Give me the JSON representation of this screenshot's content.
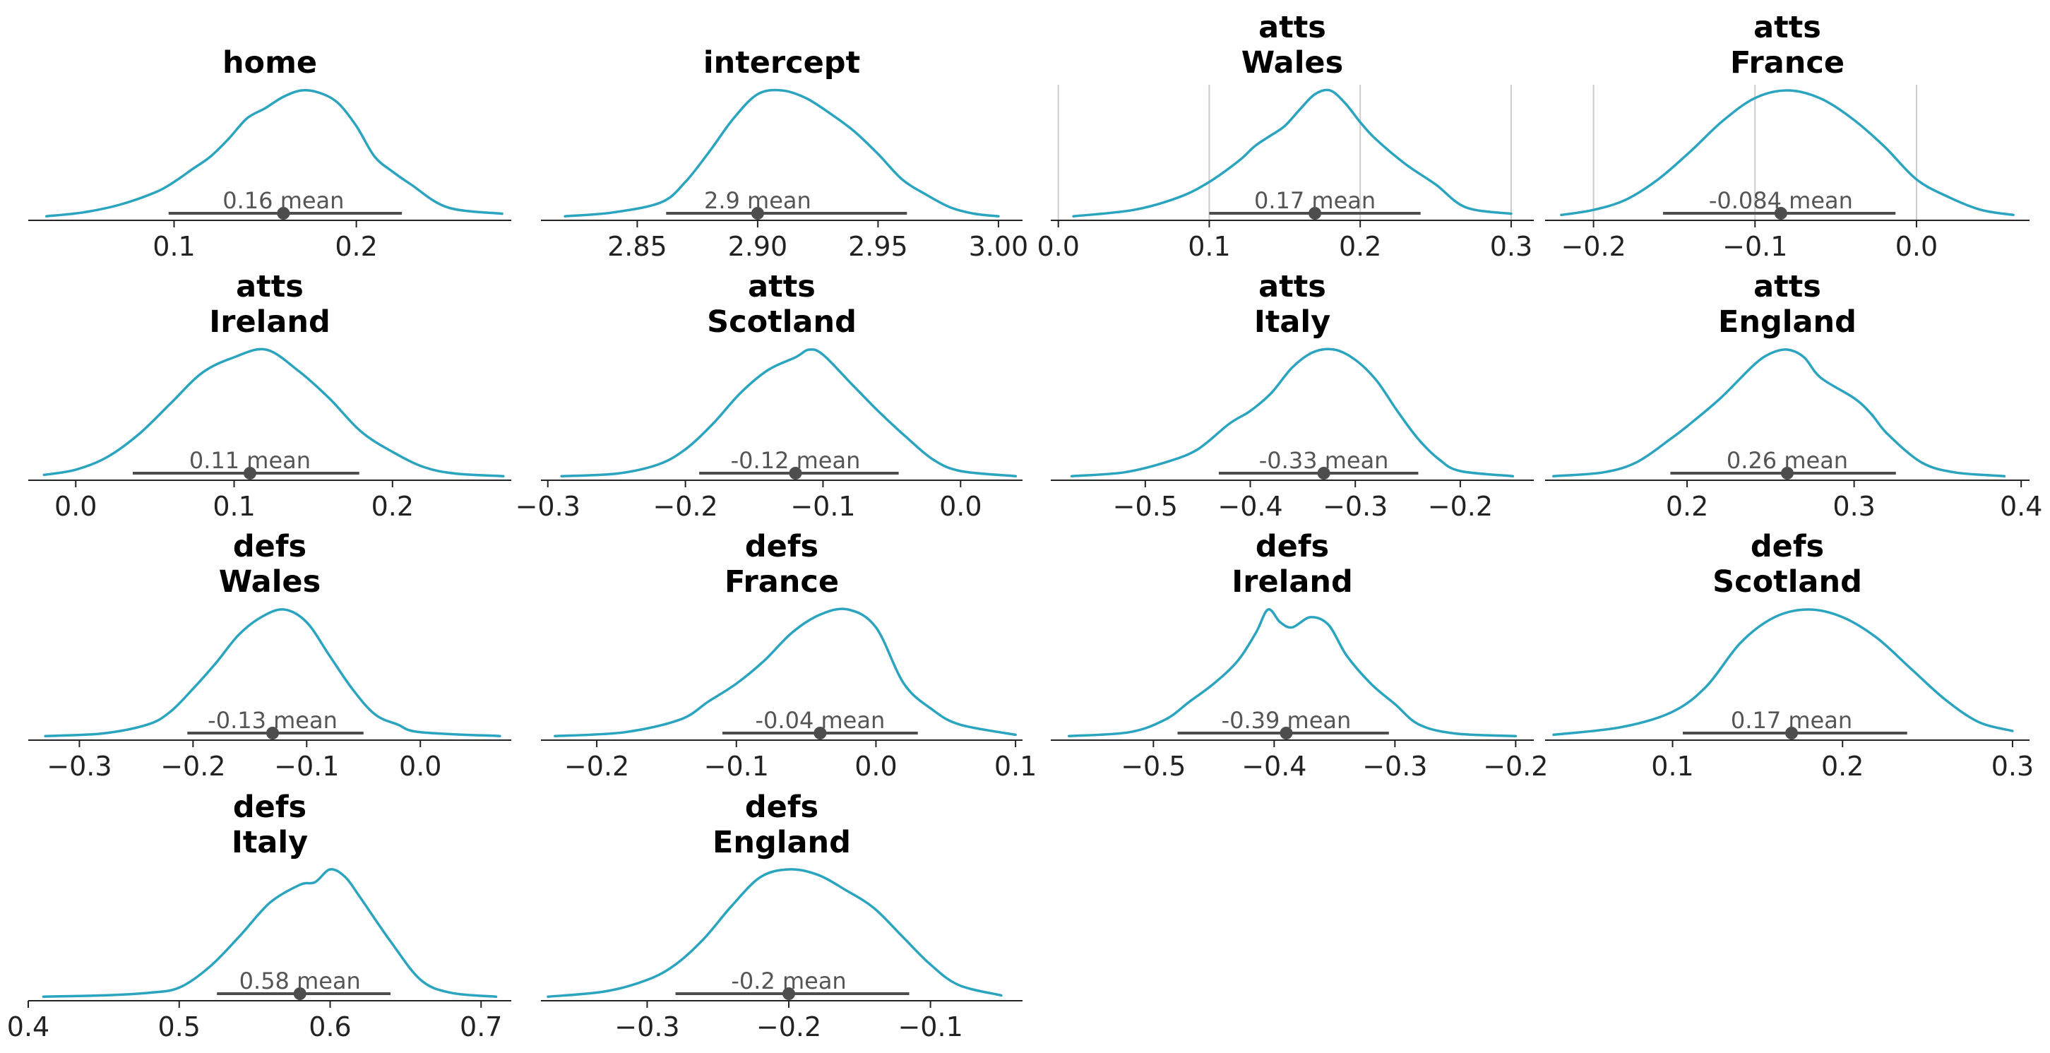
{
  "colors": {
    "curve": "#2aa4bf",
    "interval": "#4d4d4d",
    "point_label": "#555555",
    "axis": "#222222",
    "grid": "#cccccc"
  },
  "chart_data": [
    {
      "type": "line",
      "title": [
        "home"
      ],
      "xlim": [
        0.02,
        0.285
      ],
      "ticks": [
        0.1,
        0.2
      ],
      "tick_labels": [
        "0.1",
        "0.2"
      ],
      "grid": false,
      "mean": 0.16,
      "mean_label": "0.16 mean",
      "interval": [
        0.097,
        0.225
      ],
      "density": {
        "x": [
          0.03,
          0.05,
          0.07,
          0.09,
          0.1,
          0.11,
          0.12,
          0.13,
          0.14,
          0.15,
          0.16,
          0.17,
          0.18,
          0.19,
          0.2,
          0.21,
          0.22,
          0.23,
          0.25,
          0.28
        ],
        "y": [
          0.01,
          0.04,
          0.1,
          0.2,
          0.28,
          0.38,
          0.48,
          0.62,
          0.78,
          0.86,
          0.95,
          1.0,
          0.98,
          0.9,
          0.72,
          0.48,
          0.36,
          0.26,
          0.08,
          0.03
        ]
      }
    },
    {
      "type": "line",
      "title": [
        "intercept"
      ],
      "xlim": [
        2.81,
        3.01
      ],
      "ticks": [
        2.85,
        2.9,
        2.95,
        3.0
      ],
      "tick_labels": [
        "2.85",
        "2.90",
        "2.95",
        "3.00"
      ],
      "grid": false,
      "mean": 2.9,
      "mean_label": "2.9 mean",
      "interval": [
        2.862,
        2.962
      ],
      "density": {
        "x": [
          2.82,
          2.84,
          2.86,
          2.87,
          2.88,
          2.89,
          2.9,
          2.91,
          2.92,
          2.93,
          2.94,
          2.95,
          2.96,
          2.97,
          2.98,
          2.99,
          3.0
        ],
        "y": [
          0.01,
          0.04,
          0.12,
          0.28,
          0.52,
          0.78,
          0.97,
          1.0,
          0.94,
          0.82,
          0.68,
          0.5,
          0.3,
          0.18,
          0.08,
          0.03,
          0.01
        ]
      }
    },
    {
      "type": "line",
      "title": [
        "atts",
        "Wales"
      ],
      "xlim": [
        -0.005,
        0.315
      ],
      "ticks": [
        0.0,
        0.1,
        0.2,
        0.3
      ],
      "tick_labels": [
        "0.0",
        "0.1",
        "0.2",
        "0.3"
      ],
      "grid": true,
      "mean": 0.17,
      "mean_label": "0.17 mean",
      "interval": [
        0.1,
        0.24
      ],
      "density": {
        "x": [
          0.01,
          0.05,
          0.08,
          0.1,
          0.12,
          0.13,
          0.14,
          0.15,
          0.16,
          0.17,
          0.18,
          0.19,
          0.2,
          0.21,
          0.23,
          0.25,
          0.27,
          0.3
        ],
        "y": [
          0.01,
          0.06,
          0.16,
          0.28,
          0.45,
          0.56,
          0.64,
          0.72,
          0.85,
          0.97,
          1.0,
          0.9,
          0.75,
          0.62,
          0.42,
          0.26,
          0.08,
          0.03
        ]
      }
    },
    {
      "type": "line",
      "title": [
        "atts",
        "France"
      ],
      "xlim": [
        -0.23,
        0.07
      ],
      "ticks": [
        -0.2,
        -0.1,
        0.0
      ],
      "tick_labels": [
        "−0.2",
        "−0.1",
        "0.0"
      ],
      "grid": true,
      "mean": -0.084,
      "mean_label": "-0.084 mean",
      "interval": [
        -0.157,
        -0.013
      ],
      "density": {
        "x": [
          -0.22,
          -0.2,
          -0.18,
          -0.16,
          -0.14,
          -0.12,
          -0.1,
          -0.08,
          -0.06,
          -0.04,
          -0.02,
          0.0,
          0.02,
          0.04,
          0.06
        ],
        "y": [
          0.02,
          0.06,
          0.14,
          0.3,
          0.52,
          0.76,
          0.94,
          1.0,
          0.94,
          0.78,
          0.56,
          0.3,
          0.16,
          0.06,
          0.02
        ]
      }
    },
    {
      "type": "line",
      "title": [
        "atts",
        "Ireland"
      ],
      "xlim": [
        -0.03,
        0.275
      ],
      "ticks": [
        0.0,
        0.1,
        0.2
      ],
      "tick_labels": [
        "0.0",
        "0.1",
        "0.2"
      ],
      "grid": false,
      "mean": 0.11,
      "mean_label": "0.11 mean",
      "interval": [
        0.036,
        0.179
      ],
      "density": {
        "x": [
          -0.02,
          0.0,
          0.02,
          0.04,
          0.06,
          0.08,
          0.1,
          0.12,
          0.14,
          0.16,
          0.18,
          0.2,
          0.22,
          0.24,
          0.27
        ],
        "y": [
          0.02,
          0.06,
          0.16,
          0.34,
          0.58,
          0.82,
          0.94,
          1.0,
          0.84,
          0.62,
          0.36,
          0.2,
          0.08,
          0.03,
          0.01
        ]
      }
    },
    {
      "type": "line",
      "title": [
        "atts",
        "Scotland"
      ],
      "xlim": [
        -0.305,
        0.045
      ],
      "ticks": [
        -0.3,
        -0.2,
        -0.1,
        0.0
      ],
      "tick_labels": [
        "−0.3",
        "−0.2",
        "−0.1",
        "0.0"
      ],
      "grid": false,
      "mean": -0.12,
      "mean_label": "-0.12 mean",
      "interval": [
        -0.19,
        -0.045
      ],
      "density": {
        "x": [
          -0.29,
          -0.25,
          -0.22,
          -0.2,
          -0.18,
          -0.16,
          -0.14,
          -0.12,
          -0.11,
          -0.1,
          -0.08,
          -0.06,
          -0.04,
          -0.02,
          0.0,
          0.04
        ],
        "y": [
          0.01,
          0.03,
          0.1,
          0.22,
          0.42,
          0.66,
          0.84,
          0.94,
          1.0,
          0.96,
          0.74,
          0.52,
          0.32,
          0.14,
          0.05,
          0.01
        ]
      }
    },
    {
      "type": "line",
      "title": [
        "atts",
        "Italy"
      ],
      "xlim": [
        -0.59,
        -0.13
      ],
      "ticks": [
        -0.5,
        -0.4,
        -0.3,
        -0.2
      ],
      "tick_labels": [
        "−0.5",
        "−0.4",
        "−0.3",
        "−0.2"
      ],
      "grid": false,
      "mean": -0.33,
      "mean_label": "-0.33 mean",
      "interval": [
        -0.43,
        -0.24
      ],
      "density": {
        "x": [
          -0.57,
          -0.52,
          -0.48,
          -0.45,
          -0.42,
          -0.4,
          -0.38,
          -0.36,
          -0.34,
          -0.32,
          -0.3,
          -0.28,
          -0.26,
          -0.24,
          -0.22,
          -0.2,
          -0.15
        ],
        "y": [
          0.01,
          0.04,
          0.12,
          0.22,
          0.42,
          0.52,
          0.66,
          0.86,
          0.98,
          1.0,
          0.92,
          0.76,
          0.52,
          0.3,
          0.14,
          0.05,
          0.01
        ]
      }
    },
    {
      "type": "line",
      "title": [
        "atts",
        "England"
      ],
      "xlim": [
        0.115,
        0.405
      ],
      "ticks": [
        0.2,
        0.3,
        0.4
      ],
      "tick_labels": [
        "0.2",
        "0.3",
        "0.4"
      ],
      "grid": false,
      "mean": 0.26,
      "mean_label": "0.26 mean",
      "interval": [
        0.19,
        0.325
      ],
      "density": {
        "x": [
          0.12,
          0.15,
          0.17,
          0.19,
          0.2,
          0.22,
          0.24,
          0.25,
          0.26,
          0.27,
          0.28,
          0.3,
          0.31,
          0.32,
          0.34,
          0.36,
          0.39
        ],
        "y": [
          0.01,
          0.04,
          0.12,
          0.3,
          0.4,
          0.62,
          0.88,
          0.97,
          1.0,
          0.94,
          0.78,
          0.62,
          0.5,
          0.34,
          0.12,
          0.04,
          0.01
        ]
      }
    },
    {
      "type": "line",
      "title": [
        "defs",
        "Wales"
      ],
      "xlim": [
        -0.345,
        0.08
      ],
      "ticks": [
        -0.3,
        -0.2,
        -0.1,
        0.0
      ],
      "tick_labels": [
        "−0.3",
        "−0.2",
        "−0.1",
        "0.0"
      ],
      "grid": false,
      "mean": -0.13,
      "mean_label": "-0.13 mean",
      "interval": [
        -0.205,
        -0.05
      ],
      "density": {
        "x": [
          -0.33,
          -0.28,
          -0.24,
          -0.22,
          -0.2,
          -0.18,
          -0.16,
          -0.14,
          -0.12,
          -0.1,
          -0.08,
          -0.06,
          -0.04,
          -0.02,
          0.0,
          0.07
        ],
        "y": [
          0.01,
          0.03,
          0.1,
          0.2,
          0.38,
          0.58,
          0.8,
          0.94,
          1.0,
          0.9,
          0.64,
          0.38,
          0.18,
          0.1,
          0.04,
          0.01
        ]
      }
    },
    {
      "type": "line",
      "title": [
        "defs",
        "France"
      ],
      "xlim": [
        -0.24,
        0.105
      ],
      "ticks": [
        -0.2,
        -0.1,
        0.0,
        0.1
      ],
      "tick_labels": [
        "−0.2",
        "−0.1",
        "0.0",
        "0.1"
      ],
      "grid": false,
      "mean": -0.04,
      "mean_label": "-0.04 mean",
      "interval": [
        -0.11,
        0.03
      ],
      "density": {
        "x": [
          -0.23,
          -0.18,
          -0.14,
          -0.12,
          -0.1,
          -0.08,
          -0.06,
          -0.04,
          -0.02,
          0.0,
          0.02,
          0.04,
          0.06,
          0.1
        ],
        "y": [
          0.01,
          0.04,
          0.14,
          0.28,
          0.42,
          0.6,
          0.82,
          0.96,
          1.0,
          0.86,
          0.42,
          0.22,
          0.1,
          0.02
        ]
      }
    },
    {
      "type": "line",
      "title": [
        "defs",
        "Ireland"
      ],
      "xlim": [
        -0.585,
        -0.185
      ],
      "ticks": [
        -0.5,
        -0.4,
        -0.3,
        -0.2
      ],
      "tick_labels": [
        "−0.5",
        "−0.4",
        "−0.3",
        "−0.2"
      ],
      "grid": false,
      "mean": -0.39,
      "mean_label": "-0.39 mean",
      "interval": [
        -0.48,
        -0.305
      ],
      "density": {
        "x": [
          -0.57,
          -0.52,
          -0.49,
          -0.47,
          -0.45,
          -0.43,
          -0.415,
          -0.405,
          -0.395,
          -0.385,
          -0.37,
          -0.355,
          -0.34,
          -0.32,
          -0.3,
          -0.28,
          -0.25,
          -0.2
        ],
        "y": [
          0.01,
          0.04,
          0.14,
          0.28,
          0.42,
          0.6,
          0.82,
          1.0,
          0.9,
          0.86,
          0.94,
          0.88,
          0.64,
          0.42,
          0.26,
          0.1,
          0.03,
          0.01
        ]
      }
    },
    {
      "type": "line",
      "title": [
        "defs",
        "Scotland"
      ],
      "xlim": [
        0.025,
        0.31
      ],
      "ticks": [
        0.1,
        0.2,
        0.3
      ],
      "tick_labels": [
        "0.1",
        "0.2",
        "0.3"
      ],
      "grid": false,
      "mean": 0.17,
      "mean_label": "0.17 mean",
      "interval": [
        0.106,
        0.238
      ],
      "density": {
        "x": [
          0.03,
          0.07,
          0.1,
          0.12,
          0.14,
          0.16,
          0.18,
          0.2,
          0.22,
          0.24,
          0.26,
          0.28,
          0.3
        ],
        "y": [
          0.02,
          0.08,
          0.2,
          0.4,
          0.74,
          0.94,
          1.0,
          0.94,
          0.78,
          0.54,
          0.3,
          0.12,
          0.05
        ]
      }
    },
    {
      "type": "line",
      "title": [
        "defs",
        "Italy"
      ],
      "xlim": [
        0.4,
        0.72
      ],
      "ticks": [
        0.4,
        0.5,
        0.6,
        0.7
      ],
      "tick_labels": [
        "0.4",
        "0.5",
        "0.6",
        "0.7"
      ],
      "grid": false,
      "mean": 0.58,
      "mean_label": "0.58 mean",
      "interval": [
        0.525,
        0.64
      ],
      "density": {
        "x": [
          0.41,
          0.45,
          0.48,
          0.5,
          0.52,
          0.54,
          0.56,
          0.58,
          0.59,
          0.6,
          0.61,
          0.62,
          0.64,
          0.66,
          0.68,
          0.71
        ],
        "y": [
          0.01,
          0.02,
          0.04,
          0.08,
          0.24,
          0.48,
          0.74,
          0.88,
          0.9,
          1.0,
          0.94,
          0.78,
          0.44,
          0.14,
          0.04,
          0.01
        ]
      }
    },
    {
      "type": "line",
      "title": [
        "defs",
        "England"
      ],
      "xlim": [
        -0.375,
        -0.035
      ],
      "ticks": [
        -0.3,
        -0.2,
        -0.1
      ],
      "tick_labels": [
        "−0.3",
        "−0.2",
        "−0.1"
      ],
      "grid": false,
      "mean": -0.2,
      "mean_label": "-0.2 mean",
      "interval": [
        -0.28,
        -0.115
      ],
      "density": {
        "x": [
          -0.37,
          -0.33,
          -0.3,
          -0.28,
          -0.26,
          -0.24,
          -0.22,
          -0.2,
          -0.18,
          -0.16,
          -0.14,
          -0.12,
          -0.1,
          -0.08,
          -0.05
        ],
        "y": [
          0.01,
          0.05,
          0.14,
          0.26,
          0.46,
          0.72,
          0.94,
          1.0,
          0.96,
          0.84,
          0.7,
          0.48,
          0.26,
          0.1,
          0.02
        ]
      }
    }
  ]
}
